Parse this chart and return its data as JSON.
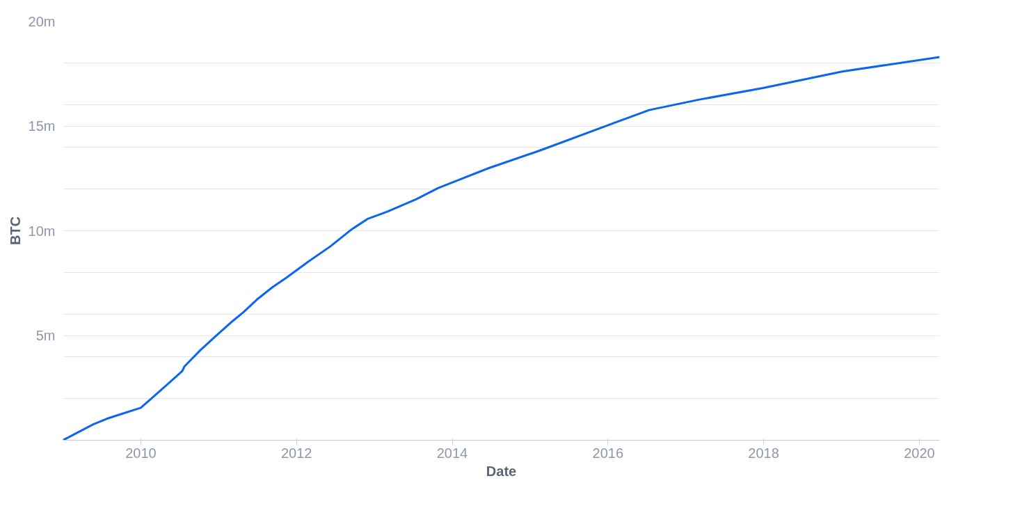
{
  "chart_data": {
    "type": "line",
    "xlabel": "Date",
    "ylabel": "BTC",
    "x": [
      2009.0,
      2009.39,
      2009.56,
      2009.69,
      2010.0,
      2010.11,
      2010.34,
      2010.53,
      2010.56,
      2010.76,
      2010.95,
      2011.18,
      2011.32,
      2011.49,
      2011.69,
      2011.87,
      2012.15,
      2012.43,
      2012.71,
      2012.91,
      2013.17,
      2013.54,
      2013.82,
      2014.47,
      2015.12,
      2016.14,
      2016.53,
      2017.16,
      2017.99,
      2019.01,
      2020.26
    ],
    "series": [
      {
        "color": "#0a66f0",
        "values": [
          0,
          0.76,
          1.02,
          1.18,
          1.55,
          1.91,
          2.66,
          3.29,
          3.52,
          4.28,
          4.93,
          5.69,
          6.12,
          6.71,
          7.3,
          7.76,
          8.52,
          9.24,
          10.07,
          10.56,
          10.92,
          11.51,
          12.04,
          12.99,
          13.82,
          15.23,
          15.76,
          16.25,
          16.81,
          17.6,
          18.29
        ]
      }
    ],
    "xlim": [
      2009.0,
      2020.26
    ],
    "ylim": [
      0,
      20
    ],
    "xticks": [
      2010,
      2012,
      2014,
      2016,
      2018,
      2020
    ],
    "yticks": [
      {
        "value": 0,
        "label": null
      },
      {
        "value": 2,
        "label": null
      },
      {
        "value": 4,
        "label": null
      },
      {
        "value": 5,
        "label": "5m"
      },
      {
        "value": 6,
        "label": null
      },
      {
        "value": 8,
        "label": null
      },
      {
        "value": 10,
        "label": "10m"
      },
      {
        "value": 12,
        "label": null
      },
      {
        "value": 14,
        "label": null
      },
      {
        "value": 15,
        "label": "15m"
      },
      {
        "value": 16,
        "label": null
      },
      {
        "value": 18,
        "label": null
      },
      {
        "value": 20,
        "label": "20m"
      }
    ],
    "grid": "y",
    "marker": "none",
    "line_style": "solid"
  }
}
